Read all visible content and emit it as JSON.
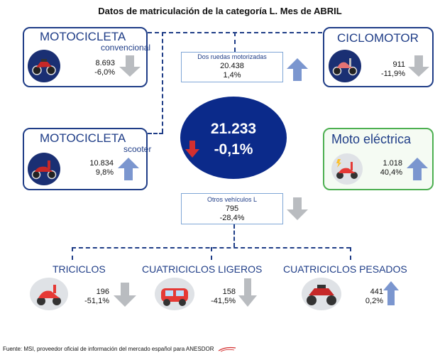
{
  "title": "Datos de matriculación de la categoría L. Mes de ABRIL",
  "center": {
    "total": "21.233",
    "change": "-0,1%",
    "trend": "down",
    "color": "#0b2a8a"
  },
  "two_wheels": {
    "label": "Dos ruedas motorizadas",
    "value": "20.438",
    "change": "1,4%",
    "trend": "up"
  },
  "other_vehicles": {
    "label": "Otros vehículos L",
    "value": "795",
    "change": "-28,4%",
    "trend": "down"
  },
  "cards": {
    "moto_convencional": {
      "title": "MOTOCICLETA",
      "subtitle": "convencional",
      "value": "8.693",
      "change": "-6,0%",
      "trend": "down",
      "icon": "motorcycle-icon"
    },
    "ciclomotor": {
      "title": "CICLOMOTOR",
      "value": "911",
      "change": "-11,9%",
      "trend": "down",
      "icon": "moped-icon"
    },
    "moto_scooter": {
      "title": "MOTOCICLETA",
      "subtitle": "scooter",
      "value": "10.834",
      "change": "9,8%",
      "trend": "up",
      "icon": "scooter-icon"
    },
    "moto_electrica": {
      "title": "Moto eléctrica",
      "value": "1.018",
      "change": "40,4%",
      "trend": "up",
      "icon": "electric-scooter-icon",
      "accent": "#4caf50"
    }
  },
  "bottom": {
    "triciclos": {
      "title": "TRICICLOS",
      "value": "196",
      "change": "-51,1%",
      "trend": "down",
      "icon": "tricycle-icon"
    },
    "cuatriciclos_ligeros": {
      "title": "CUATRICICLOS LIGEROS",
      "value": "158",
      "change": "-41,5%",
      "trend": "down",
      "icon": "microcar-icon"
    },
    "cuatriciclos_pesados": {
      "title": "CUATRICICLOS PESADOS",
      "value": "441",
      "change": "0,2%",
      "trend": "up",
      "icon": "quad-icon"
    }
  },
  "footer": "Fuente: MSI, proveedor oficial de información del mercado español para ANESDOR",
  "colors": {
    "brand_blue": "#1f3d87",
    "arrow_up": "#7b96cf",
    "arrow_down": "#b9bcc0",
    "arrow_red": "#d32f2f"
  }
}
